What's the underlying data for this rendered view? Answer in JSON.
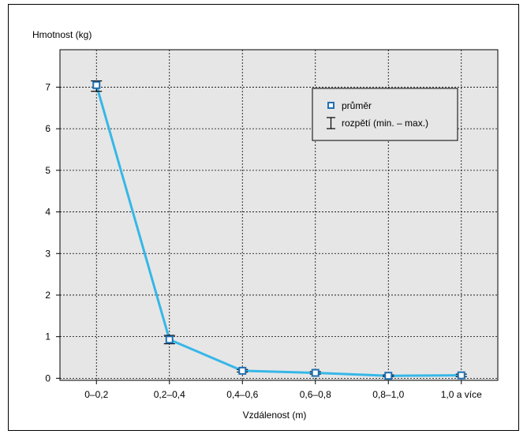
{
  "chart_data": {
    "type": "line",
    "title": "",
    "ylabel": "Hmotnost (kg)",
    "xlabel": "Vzdálenost (m)",
    "categories": [
      "0–0,2",
      "0,2–0,4",
      "0,4–0,6",
      "0,6–0,8",
      "0,8–1,0",
      "1,0 a více"
    ],
    "ylim": [
      -0.05,
      7.9
    ],
    "yticks": [
      0,
      1,
      2,
      3,
      4,
      5,
      6,
      7
    ],
    "grid": true,
    "legend_position": "top-right",
    "series": [
      {
        "name": "průměr",
        "values": [
          7.05,
          0.93,
          0.18,
          0.13,
          0.06,
          0.07
        ],
        "range_min": [
          6.9,
          0.83,
          0.15,
          0.1,
          0.04,
          0.04
        ],
        "range_max": [
          7.15,
          1.03,
          0.21,
          0.16,
          0.08,
          0.1
        ]
      }
    ],
    "legend": {
      "mean_label": "průměr",
      "range_label": "rozpětí (min. – max.)"
    },
    "colors": {
      "line": "#36b7e8",
      "marker": "#1f6fb3",
      "grid": "#000000",
      "background": "#e6e6e6"
    }
  }
}
